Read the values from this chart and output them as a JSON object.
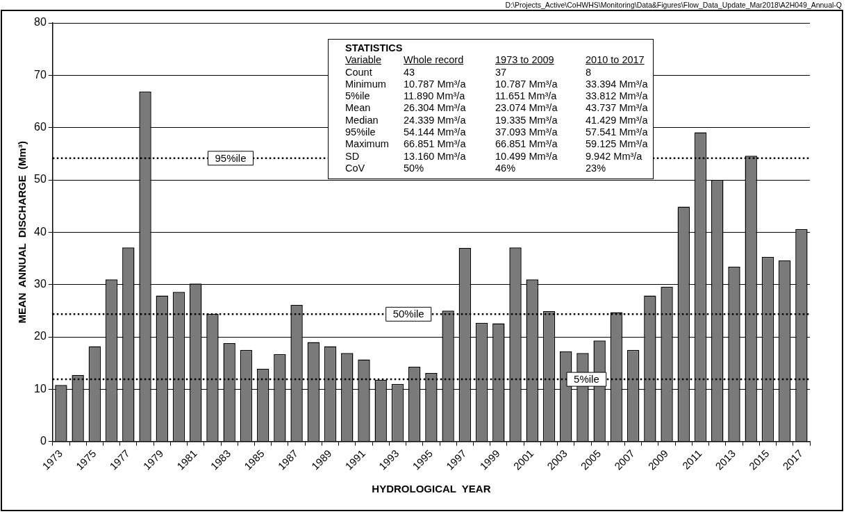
{
  "chart_data": {
    "type": "bar",
    "xlabel": "HYDROLOGICAL  YEAR",
    "ylabel": "MEAN  ANNUAL  DISCHARGE  (Mm³)",
    "categories": [
      "1973",
      null,
      "1975",
      null,
      "1977",
      null,
      "1979",
      null,
      "1981",
      null,
      "1983",
      null,
      "1985",
      null,
      "1987",
      null,
      "1989",
      null,
      "1991",
      null,
      "1993",
      null,
      "1995",
      null,
      "1997",
      null,
      "1999",
      null,
      "2001",
      null,
      "2003",
      null,
      "2005",
      null,
      "2007",
      null,
      "2009",
      null,
      "2011",
      null,
      "2013",
      null,
      "2015",
      null,
      "2017"
    ],
    "values": [
      10.8,
      12.7,
      18.2,
      31.0,
      37.1,
      66.9,
      27.9,
      28.6,
      30.2,
      24.4,
      18.8,
      17.5,
      13.9,
      16.7,
      26.1,
      19.0,
      18.2,
      16.9,
      15.7,
      11.8,
      11.0,
      14.3,
      13.1,
      25.0,
      37.0,
      22.7,
      22.6,
      37.1,
      31.0,
      24.9,
      17.2,
      16.9,
      19.3,
      24.7,
      17.5,
      27.9,
      29.6,
      44.9,
      59.1,
      50.0,
      33.4,
      54.6,
      35.3,
      34.6,
      40.6
    ],
    "color": "#7a7a7a",
    "ylim": [
      0,
      80
    ],
    "yticks": [
      0,
      10,
      20,
      30,
      40,
      50,
      60,
      70,
      80
    ],
    "grid": "y",
    "legend": false,
    "ref_lines": [
      {
        "axis": "y",
        "value": 54.144,
        "label": "95%ile",
        "line_style": "dotted",
        "color": "#000000"
      },
      {
        "axis": "y",
        "value": 24.339,
        "label": "50%ile",
        "line_style": "dotted",
        "color": "#000000"
      },
      {
        "axis": "y",
        "value": 11.89,
        "label": "5%ile",
        "line_style": "dotted",
        "color": "#000000"
      }
    ],
    "annotations": [
      "D:\\Projects_Active\\CoHWHS\\Monitoring\\Data&Figures\\Flow_Data_Update_Mar2018\\A2H049_Annual-Q",
      "STATISTICS",
      "Variable\tWhole record\t1973 to 2009\t2010 to 2017",
      "Count\t43\t37\t8",
      "Minimum\t10.787 Mm³/a\t10.787 Mm³/a\t33.394 Mm³/a",
      "5%ile\t11.890 Mm³/a\t11.651 Mm³/a\t33.812 Mm³/a",
      "Mean\t26.304 Mm³/a\t23.074 Mm³/a\t43.737 Mm³/a",
      "Median\t24.339 Mm³/a\t19.335 Mm³/a\t41.429 Mm³/a",
      "95%ile\t54.144 Mm³/a\t37.093 Mm³/a\t57.541 Mm³/a",
      "Maximum\t66.851 Mm³/a\t66.851 Mm³/a\t59.125 Mm³/a",
      "SD\t13.160 Mm³/a\t10.499 Mm³/a\t9.942 Mm³/a",
      "CoV\t50%\t46%\t23%"
    ]
  }
}
